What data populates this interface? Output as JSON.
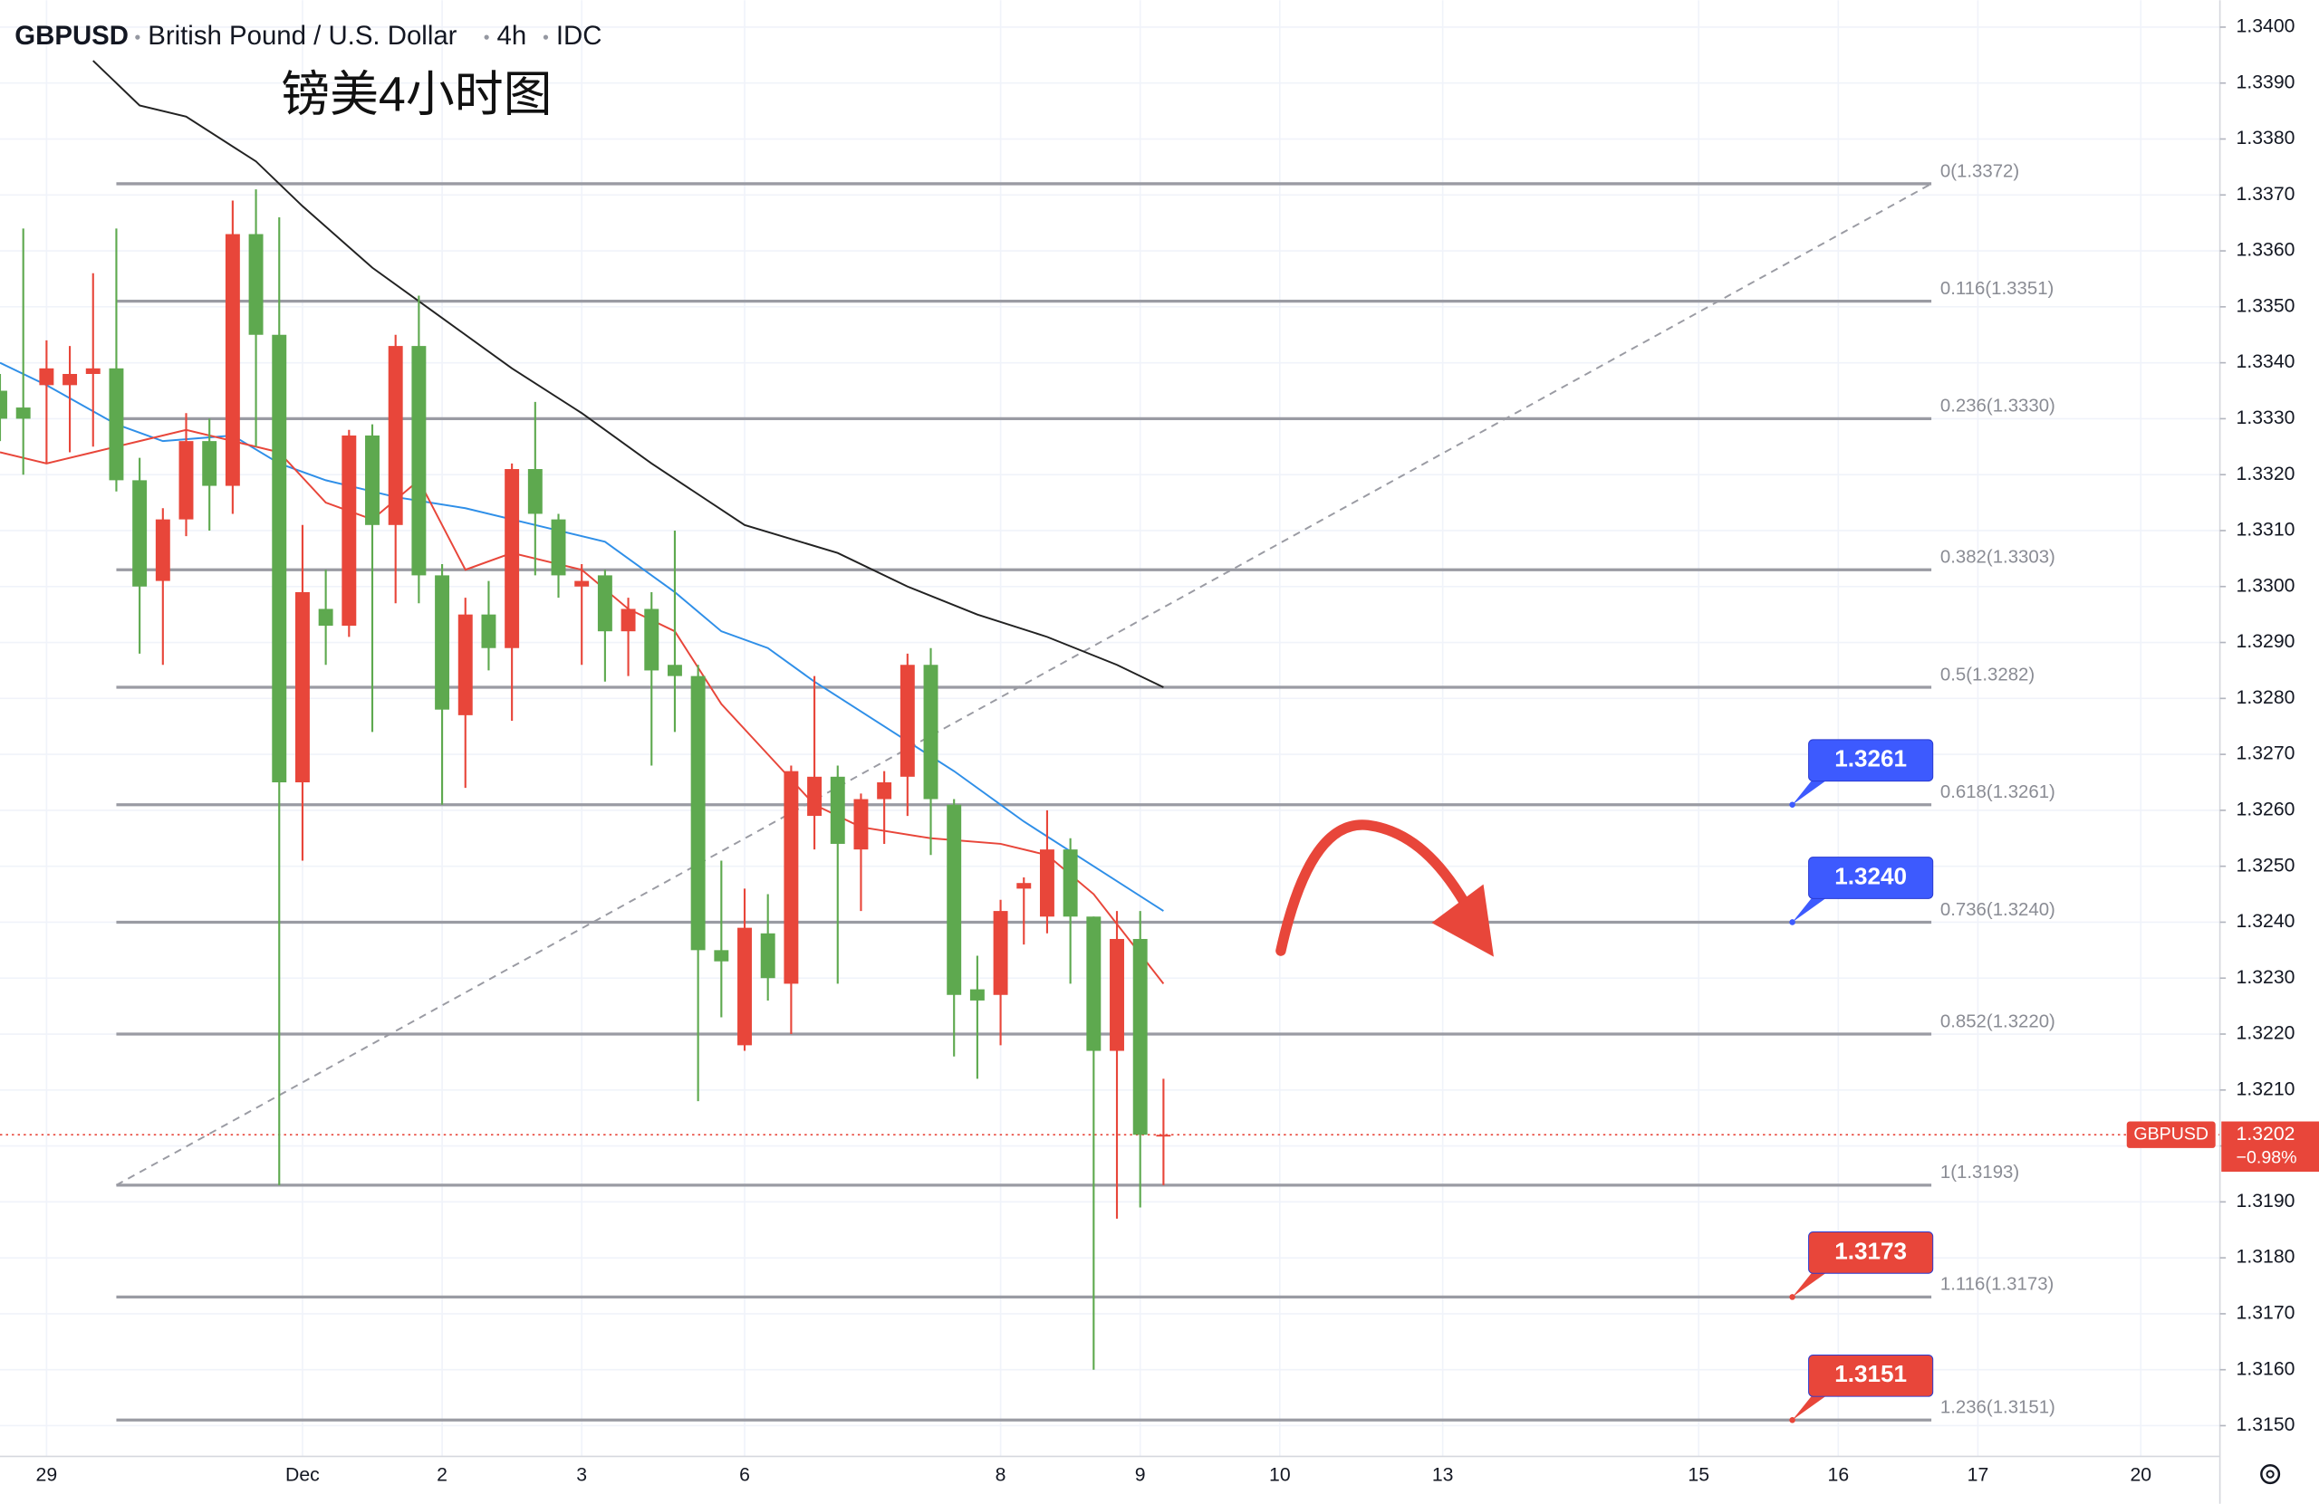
{
  "chart_data": {
    "type": "candlestick",
    "header": {
      "symbol": "GBPUSD",
      "name": "British Pound / U.S. Dollar",
      "interval": "4h",
      "source": "IDC"
    },
    "title": "镑美4小时图",
    "up_color": "#e8463a",
    "down_color": "#5ea94f",
    "candles": {
      "open": [
        1.3335,
        1.3332,
        1.3336,
        1.3336,
        1.3338,
        1.3339,
        1.3319,
        1.3301,
        1.3312,
        1.3326,
        1.3318,
        1.3363,
        1.3345,
        1.3265,
        1.3296,
        1.3293,
        1.3327,
        1.3311,
        1.3343,
        1.3302,
        1.3277,
        1.3295,
        1.3289,
        1.3321,
        1.3312,
        1.33,
        1.3302,
        1.3292,
        1.3296,
        1.3286,
        1.3284,
        1.3235,
        1.3218,
        1.3238,
        1.3229,
        1.3259,
        1.3266,
        1.3253,
        1.3262,
        1.3266,
        1.3286,
        1.3261,
        1.3228,
        1.3227,
        1.3246,
        1.3241,
        1.3253,
        1.3241,
        1.3217,
        1.3237,
        1.3202
      ],
      "high": [
        1.3338,
        1.3364,
        1.3344,
        1.3343,
        1.3356,
        1.3364,
        1.3323,
        1.3314,
        1.3331,
        1.333,
        1.3369,
        1.3371,
        1.3366,
        1.3311,
        1.3303,
        1.3328,
        1.3329,
        1.3345,
        1.3352,
        1.3304,
        1.3298,
        1.3301,
        1.3322,
        1.3333,
        1.3313,
        1.3304,
        1.3303,
        1.3298,
        1.3299,
        1.331,
        1.3286,
        1.3251,
        1.3246,
        1.3245,
        1.3268,
        1.3284,
        1.3268,
        1.3263,
        1.3267,
        1.3288,
        1.3289,
        1.3262,
        1.3234,
        1.3244,
        1.3248,
        1.326,
        1.3255,
        1.3241,
        1.3242,
        1.3242,
        1.3212
      ],
      "low": [
        1.3326,
        1.332,
        1.3322,
        1.3324,
        1.3325,
        1.3317,
        1.3288,
        1.3286,
        1.3309,
        1.331,
        1.3313,
        1.3325,
        1.3193,
        1.3251,
        1.3286,
        1.3291,
        1.3274,
        1.3297,
        1.3297,
        1.3261,
        1.3264,
        1.3285,
        1.3276,
        1.3302,
        1.3298,
        1.3286,
        1.3283,
        1.3284,
        1.3268,
        1.3274,
        1.3208,
        1.3223,
        1.3217,
        1.3226,
        1.322,
        1.3253,
        1.3229,
        1.3242,
        1.3254,
        1.3259,
        1.3252,
        1.3216,
        1.3212,
        1.3218,
        1.3236,
        1.3238,
        1.3229,
        1.316,
        1.3187,
        1.3189,
        1.3193
      ],
      "close": [
        1.333,
        1.333,
        1.3339,
        1.3338,
        1.3339,
        1.3319,
        1.33,
        1.3312,
        1.3326,
        1.3318,
        1.3363,
        1.3345,
        1.3265,
        1.3299,
        1.3293,
        1.3327,
        1.3311,
        1.3343,
        1.3302,
        1.3278,
        1.3295,
        1.3289,
        1.3321,
        1.3313,
        1.3302,
        1.3301,
        1.3292,
        1.3296,
        1.3285,
        1.3284,
        1.3235,
        1.3233,
        1.3239,
        1.323,
        1.3267,
        1.3266,
        1.3254,
        1.3262,
        1.3265,
        1.3286,
        1.3262,
        1.3227,
        1.3226,
        1.3242,
        1.3247,
        1.3253,
        1.3241,
        1.3217,
        1.3237,
        1.3202,
        1.3202
      ]
    },
    "overlays": [
      {
        "color": "#222222",
        "x": [
          4,
          6,
          8,
          11,
          13,
          16,
          19,
          22,
          25,
          28,
          32,
          36,
          39,
          42,
          45,
          48,
          50
        ],
        "values": [
          1.3394,
          1.3386,
          1.3384,
          1.3376,
          1.3368,
          1.3357,
          1.3348,
          1.3339,
          1.3331,
          1.3322,
          1.3311,
          1.3306,
          1.33,
          1.3295,
          1.3291,
          1.3286,
          1.3282
        ]
      },
      {
        "color": "#2f8fe8",
        "x": [
          0,
          2,
          5,
          7,
          10,
          12,
          14,
          17,
          20,
          23,
          26,
          29,
          31,
          33,
          35,
          38,
          41,
          44,
          47,
          50
        ],
        "values": [
          1.334,
          1.3336,
          1.3329,
          1.3326,
          1.3327,
          1.3322,
          1.3319,
          1.3316,
          1.3314,
          1.3311,
          1.3308,
          1.3299,
          1.3292,
          1.3289,
          1.3283,
          1.3275,
          1.3267,
          1.3258,
          1.325,
          1.3242
        ]
      },
      {
        "color": "#e8463a",
        "x": [
          0,
          2,
          4,
          6,
          8,
          10,
          12,
          14,
          16,
          18,
          20,
          22,
          25,
          27,
          29,
          31,
          33,
          35,
          37,
          40,
          43,
          45,
          47,
          50
        ],
        "values": [
          1.3324,
          1.3322,
          1.3324,
          1.3326,
          1.3328,
          1.3326,
          1.3324,
          1.3315,
          1.3312,
          1.3319,
          1.3303,
          1.3306,
          1.3303,
          1.3296,
          1.3292,
          1.3279,
          1.327,
          1.3261,
          1.3257,
          1.3255,
          1.3254,
          1.3252,
          1.3245,
          1.3229
        ]
      }
    ],
    "fib": {
      "x": [
        5,
        83
      ],
      "levels": [
        {
          "label": "0(1.3372)",
          "value": 1.3372
        },
        {
          "label": "0.116(1.3351)",
          "value": 1.3351
        },
        {
          "label": "0.236(1.3330)",
          "value": 1.333
        },
        {
          "label": "0.382(1.3303)",
          "value": 1.3303
        },
        {
          "label": "0.5(1.3282)",
          "value": 1.3282
        },
        {
          "label": "0.618(1.3261)",
          "value": 1.3261
        },
        {
          "label": "0.736(1.3240)",
          "value": 1.324
        },
        {
          "label": "0.852(1.3220)",
          "value": 1.322
        },
        {
          "label": "1(1.3193)",
          "value": 1.3193
        },
        {
          "label": "1.116(1.3173)",
          "value": 1.3173
        },
        {
          "label": "1.236(1.3151)",
          "value": 1.3151
        }
      ]
    },
    "callouts": [
      {
        "value": 1.3261,
        "label": "1.3261",
        "color": "#3d5afe"
      },
      {
        "value": 1.324,
        "label": "1.3240",
        "color": "#3d5afe"
      },
      {
        "value": 1.3173,
        "label": "1.3173",
        "color": "#e8463a"
      },
      {
        "value": 1.3151,
        "label": "1.3151",
        "color": "#e8463a"
      }
    ],
    "last": {
      "symbol": "GBPUSD",
      "value": 1.3202,
      "change": "−0.98%",
      "color": "#e8463a"
    },
    "xlim": [
      0,
      95.4
    ],
    "xticks": [
      {
        "value": 2,
        "label": "29"
      },
      {
        "value": 13,
        "label": "Dec"
      },
      {
        "value": 19,
        "label": "2"
      },
      {
        "value": 25,
        "label": "3"
      },
      {
        "value": 32,
        "label": "6"
      },
      {
        "value": 43,
        "label": "8"
      },
      {
        "value": 49,
        "label": "9"
      },
      {
        "value": 55,
        "label": "10"
      },
      {
        "value": 62,
        "label": "13"
      },
      {
        "value": 73,
        "label": "15"
      },
      {
        "value": 79,
        "label": "16"
      },
      {
        "value": 85,
        "label": "17"
      },
      {
        "value": 92,
        "label": "20"
      }
    ],
    "ylim": [
      1.31445,
      1.34048
    ],
    "yticks": [
      {
        "value": 1.315,
        "label": "1.3150"
      },
      {
        "value": 1.316,
        "label": "1.3160"
      },
      {
        "value": 1.317,
        "label": "1.3170"
      },
      {
        "value": 1.318,
        "label": "1.3180"
      },
      {
        "value": 1.319,
        "label": "1.3190"
      },
      {
        "value": 1.32,
        "label": "1.3200"
      },
      {
        "value": 1.321,
        "label": "1.3210"
      },
      {
        "value": 1.322,
        "label": "1.3220"
      },
      {
        "value": 1.323,
        "label": "1.3230"
      },
      {
        "value": 1.324,
        "label": "1.3240"
      },
      {
        "value": 1.325,
        "label": "1.3250"
      },
      {
        "value": 1.326,
        "label": "1.3260"
      },
      {
        "value": 1.327,
        "label": "1.3270"
      },
      {
        "value": 1.328,
        "label": "1.3280"
      },
      {
        "value": 1.329,
        "label": "1.3290"
      },
      {
        "value": 1.33,
        "label": "1.3300"
      },
      {
        "value": 1.331,
        "label": "1.3310"
      },
      {
        "value": 1.332,
        "label": "1.3320"
      },
      {
        "value": 1.333,
        "label": "1.3330"
      },
      {
        "value": 1.334,
        "label": "1.3340"
      },
      {
        "value": 1.335,
        "label": "1.3350"
      },
      {
        "value": 1.336,
        "label": "1.3360"
      },
      {
        "value": 1.337,
        "label": "1.3370"
      },
      {
        "value": 1.338,
        "label": "1.3380"
      },
      {
        "value": 1.339,
        "label": "1.3390"
      },
      {
        "value": 1.34,
        "label": "1.3400"
      }
    ],
    "grid": true
  }
}
